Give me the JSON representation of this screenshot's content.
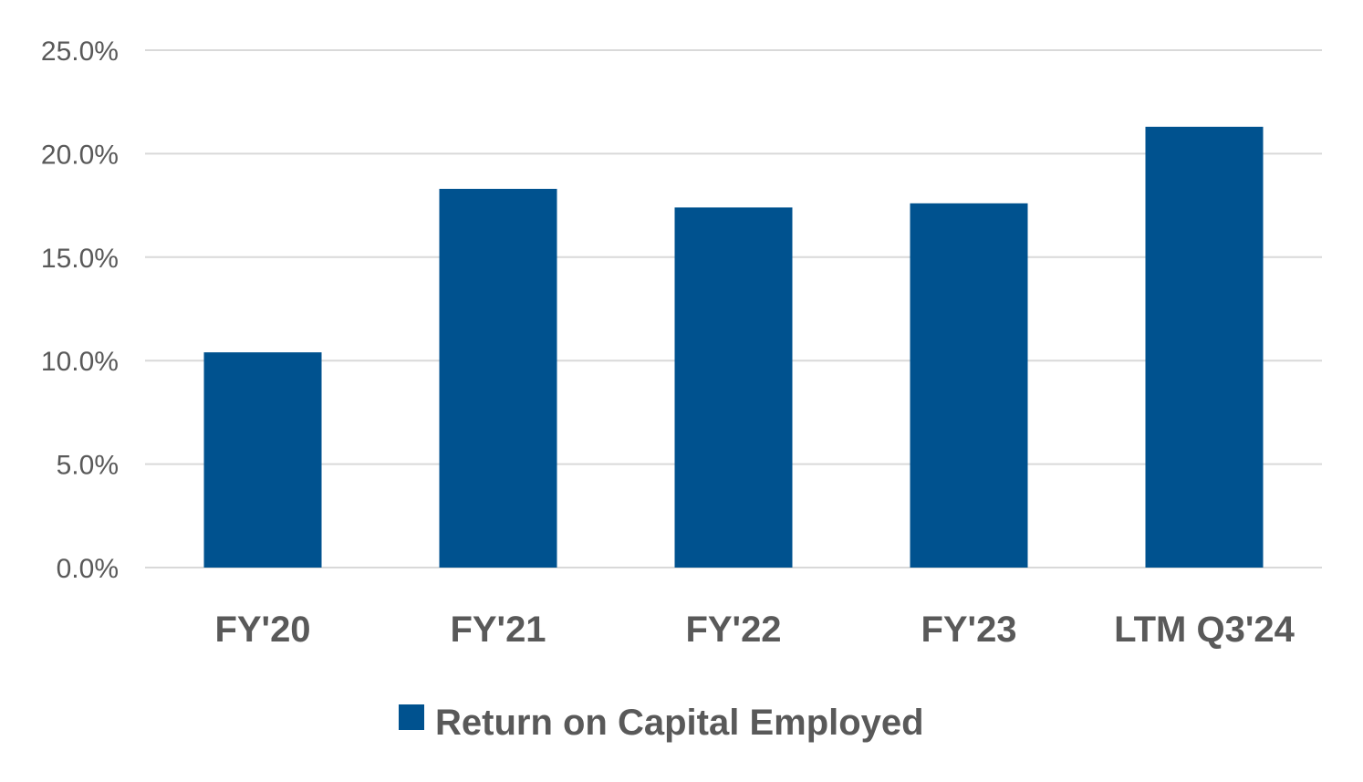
{
  "chart_data": {
    "type": "bar",
    "categories": [
      "FY'20",
      "FY'21",
      "FY'22",
      "FY'23",
      "LTM Q3'24"
    ],
    "series": [
      {
        "name": "Return on Capital Employed",
        "values": [
          10.4,
          18.3,
          17.4,
          17.6,
          21.3
        ],
        "color": "#00528F"
      }
    ],
    "ylim": [
      0,
      25
    ],
    "yticks": [
      0,
      5,
      10,
      15,
      20,
      25
    ],
    "ytick_labels": [
      "0.0%",
      "5.0%",
      "10.0%",
      "15.0%",
      "20.0%",
      "25.0%"
    ],
    "grid": true,
    "legend": "bottom",
    "colors": {
      "bar": "#00528F",
      "grid": "#d9d9d9",
      "text": "#595959"
    }
  }
}
